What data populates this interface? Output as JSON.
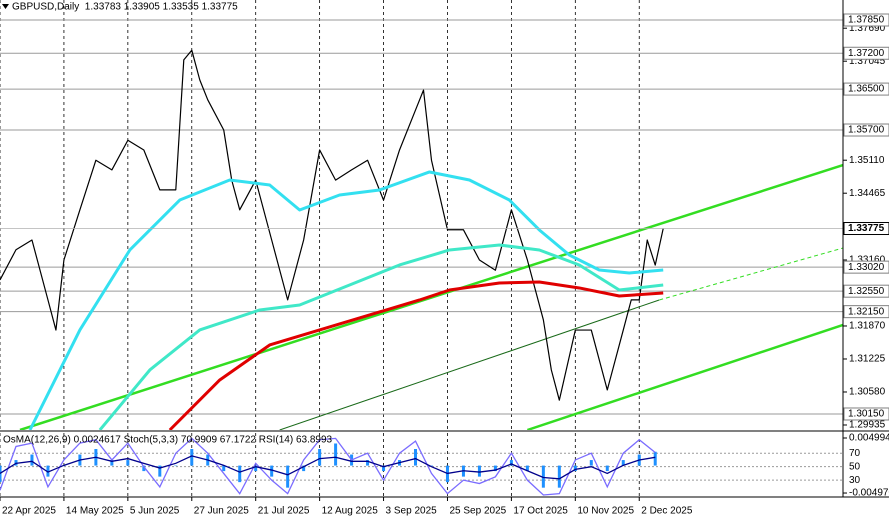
{
  "chart_data": [
    {
      "type": "line",
      "title": "GBPUSD,Daily  1.33783 1.33905 1.33535 1.33775",
      "xlim": [
        0,
        211
      ],
      "xticks": [
        {
          "value": 0,
          "label": "22 Apr 2025"
        },
        {
          "value": 16,
          "label": "14 May 2025"
        },
        {
          "value": 32,
          "label": "5 Jun 2025"
        },
        {
          "value": 48,
          "label": "27 Jun 2025"
        },
        {
          "value": 64,
          "label": "21 Jul 2025"
        },
        {
          "value": 80,
          "label": "12 Aug 2025"
        },
        {
          "value": 96,
          "label": "3 Sep 2025"
        },
        {
          "value": 112,
          "label": "25 Sep 2025"
        },
        {
          "value": 128,
          "label": "17 Oct 2025"
        },
        {
          "value": 144,
          "label": "10 Nov 2025"
        },
        {
          "value": 160,
          "label": "2 Dec 2025"
        }
      ],
      "ylim": [
        1.29837,
        1.38241
      ],
      "yticks": [
        {
          "value": 1.3769,
          "label": "1.37690"
        },
        1.37045,
        {
          "value": 1.3511,
          "label": "1.35110"
        },
        1.34465,
        {
          "value": 1.3316,
          "label": "1.33160"
        },
        {
          "value": 1.3187,
          "label": "1.31870"
        },
        1.31225,
        {
          "value": 1.3058,
          "label": "1.30580"
        },
        1.29935
      ],
      "grid": true,
      "levels": [
        {
          "value": 1.3785,
          "label": "1.37850"
        },
        {
          "value": 1.372,
          "label": "1.37200"
        },
        {
          "value": 1.365,
          "label": "1.36500"
        },
        {
          "value": 1.357,
          "label": "1.35700"
        },
        {
          "value": 1.3302,
          "label": "1.33020"
        },
        {
          "value": 1.3255,
          "label": "1.32550"
        },
        {
          "value": 1.3215,
          "label": "1.32150"
        },
        {
          "value": 1.3015,
          "label": "1.30150"
        }
      ],
      "current": 1.33775,
      "series": [
        {
          "color": "#000000",
          "width": 1.2,
          "x": [
            0,
            4,
            8,
            12,
            14,
            16,
            20,
            24,
            28,
            32,
            36,
            40,
            44,
            46,
            48,
            50,
            52,
            56,
            58,
            60,
            64,
            68,
            72,
            76,
            80,
            84,
            88,
            92,
            96,
            100,
            104,
            106,
            108,
            112,
            116,
            120,
            124,
            128,
            132,
            136,
            138,
            140,
            144,
            148,
            152,
            156,
            158,
            160,
            162,
            164,
            166
          ],
          "values": [
            1.3277,
            1.3336,
            1.3355,
            1.3238,
            1.3179,
            1.3316,
            1.3414,
            1.3511,
            1.3492,
            1.355,
            1.3531,
            1.3453,
            1.3453,
            1.3707,
            1.3726,
            1.3668,
            1.3629,
            1.357,
            1.3472,
            1.3414,
            1.3472,
            1.3355,
            1.3238,
            1.3355,
            1.3531,
            1.3472,
            1.3492,
            1.3511,
            1.3433,
            1.3531,
            1.3609,
            1.3648,
            1.3511,
            1.3375,
            1.3375,
            1.3316,
            1.3296,
            1.3414,
            1.3316,
            1.3199,
            1.3101,
            1.3042,
            1.3179,
            1.3179,
            1.3062,
            1.3179,
            1.3238,
            1.3238,
            1.3355,
            1.3306,
            1.33775
          ]
        },
        {
          "color": "#33e0f0",
          "width": 3,
          "x": [
            7.5,
            20,
            32.5,
            45,
            57.5,
            67.5,
            75,
            85,
            95,
            107.5,
            117.5,
            127.5,
            135,
            142.5,
            150,
            157.5,
            166
          ],
          "values": [
            1.29837,
            1.31792,
            1.33355,
            1.34332,
            1.34723,
            1.34625,
            1.34137,
            1.3443,
            1.34528,
            1.3488,
            1.34723,
            1.34332,
            1.33746,
            1.33257,
            1.32964,
            1.32906,
            1.32964
          ]
        },
        {
          "color": "#40e8c8",
          "width": 3,
          "x": [
            25,
            37.5,
            50,
            65,
            75,
            87.5,
            100,
            112.5,
            125,
            135,
            145,
            155,
            166
          ],
          "values": [
            1.29837,
            1.3101,
            1.31792,
            1.32183,
            1.3228,
            1.32671,
            1.33062,
            1.33355,
            1.33453,
            1.33355,
            1.33062,
            1.32573,
            1.32671
          ]
        },
        {
          "color": "#e00000",
          "width": 3,
          "x": [
            42.5,
            55,
            67.5,
            80,
            92.5,
            105,
            112.5,
            125,
            135,
            145,
            155,
            166
          ],
          "values": [
            1.29837,
            1.30815,
            1.31499,
            1.31792,
            1.32085,
            1.32378,
            1.32573,
            1.3271,
            1.3273,
            1.32613,
            1.32456,
            1.32515
          ]
        }
      ],
      "trendlines": [
        {
          "color": "#33dd22",
          "width": 2.5,
          "dashed": false,
          "x": [
            5,
            211
          ],
          "values": [
            1.29837,
            1.35016
          ]
        },
        {
          "color": "#33dd22",
          "width": 2.5,
          "dashed": false,
          "x": [
            132,
            211
          ],
          "values": [
            1.29837,
            1.3189
          ]
        },
        {
          "color": "#1a6a1a",
          "width": 1,
          "dashed": false,
          "x": [
            70,
            165
          ],
          "values": [
            1.29837,
            1.32378
          ]
        },
        {
          "color": "#33dd22",
          "width": 1,
          "dashed": true,
          "x": [
            165,
            211
          ],
          "values": [
            1.32378,
            1.33394
          ]
        }
      ]
    },
    {
      "type": "oscillator",
      "title": "OsMA(12,26,9) 0.0024617 Stoch(5,3,3) 70.9909 67.1722 RSI(14) 63.8993",
      "ylim": [
        5,
        100
      ],
      "yticks": [
        70,
        50,
        30
      ],
      "y2lim": [
        -0.00569,
        0.0059
      ],
      "y2ticks": [
        0.004994,
        {
          "value": -0.00497,
          "label": "-0.004970"
        }
      ],
      "x": [
        0,
        4,
        8,
        12,
        16,
        20,
        24,
        28,
        32,
        36,
        40,
        44,
        48,
        52,
        56,
        60,
        64,
        68,
        72,
        76,
        80,
        84,
        88,
        92,
        96,
        100,
        104,
        108,
        112,
        116,
        120,
        124,
        128,
        132,
        136,
        140,
        144,
        148,
        152,
        156,
        160,
        164
      ],
      "series": [
        {
          "axis": "y2",
          "kind": "histogram",
          "color": "#1e90ff",
          "values": [
            -0.003,
            0.001,
            0.002,
            -0.002,
            0,
            0.002,
            0.003,
            0.001,
            0.001,
            -0.001,
            -0.002,
            0,
            0.003,
            0.002,
            -0.001,
            -0.003,
            -0.001,
            -0.002,
            -0.004,
            -0.001,
            0.003,
            0.004,
            0.002,
            0.001,
            -0.001,
            0.001,
            0.003,
            0,
            -0.003,
            -0.002,
            -0.002,
            -0.001,
            0.001,
            -0.001,
            -0.004,
            -0.004,
            -0.001,
            0.001,
            -0.001,
            0.001,
            0.002,
            0.0025
          ]
        },
        {
          "kind": "line",
          "color": "#7a6cff",
          "values": [
            15,
            80,
            85,
            20,
            60,
            85,
            90,
            60,
            85,
            50,
            20,
            70,
            92,
            70,
            40,
            10,
            55,
            30,
            10,
            60,
            90,
            92,
            60,
            70,
            30,
            70,
            88,
            40,
            10,
            30,
            25,
            35,
            70,
            30,
            8,
            10,
            60,
            70,
            20,
            70,
            90,
            71
          ]
        },
        {
          "kind": "line",
          "color": "#00008b",
          "values": [
            40,
            55,
            58,
            42,
            52,
            60,
            64,
            58,
            62,
            55,
            48,
            55,
            66,
            60,
            52,
            42,
            50,
            45,
            38,
            50,
            62,
            64,
            58,
            58,
            50,
            56,
            62,
            50,
            40,
            44,
            42,
            45,
            54,
            44,
            34,
            32,
            46,
            50,
            40,
            52,
            60,
            63.9
          ]
        }
      ]
    }
  ]
}
